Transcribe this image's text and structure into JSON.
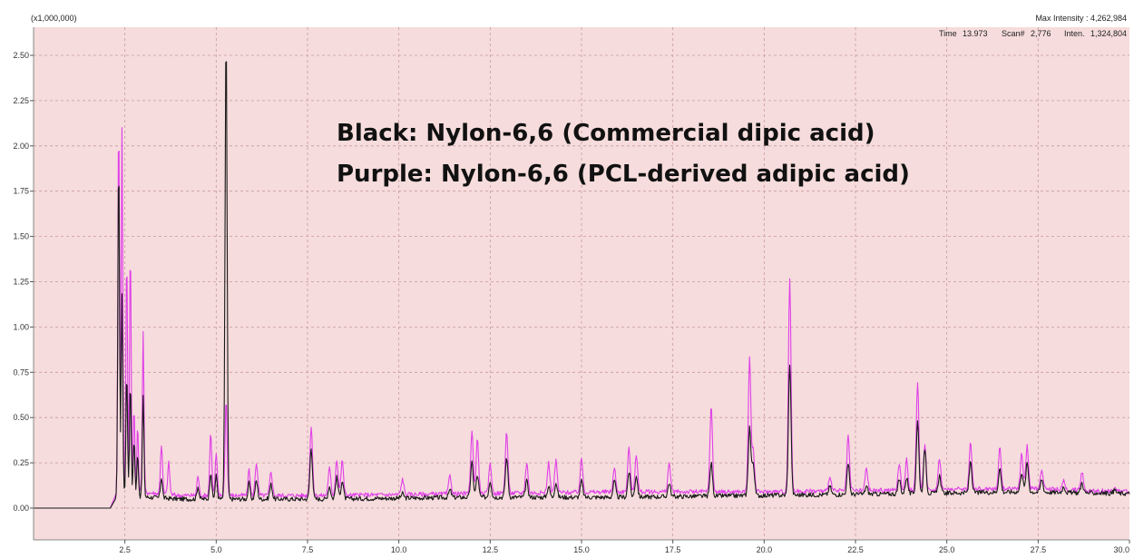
{
  "header": {
    "scale_label": "(x1,000,000)",
    "max_intensity": "Max Intensity : 4,262,984",
    "time_label": "Time",
    "time_value": "13.973",
    "scan_label": "Scan#",
    "scan_value": "2,776",
    "inten_label": "Inten.",
    "inten_value": "1,324,804"
  },
  "legend": {
    "line1": "Black: Nylon-6,6 (Commercial dipic acid)",
    "line2": "Purple: Nylon-6,6 (PCL-derived adipic acid)"
  },
  "colors": {
    "plot_background": "#f6dcdc",
    "grid": "#c89aa0",
    "black_trace": "#1a1a1a",
    "purple_trace": "#e040e8"
  },
  "chart_data": {
    "type": "line",
    "xlim": [
      0.0,
      30.0
    ],
    "ylim": [
      -0.1,
      2.65
    ],
    "grid": true,
    "x_ticks": [
      "2.5",
      "5.0",
      "7.5",
      "10.0",
      "12.5",
      "15.0",
      "17.5",
      "20.0",
      "22.5",
      "25.0",
      "27.5",
      "30.0"
    ],
    "x_tick_values": [
      2.5,
      5.0,
      7.5,
      10.0,
      12.5,
      15.0,
      17.5,
      20.0,
      22.5,
      25.0,
      27.5,
      30.0
    ],
    "y_ticks": [
      "0.00",
      "0.25",
      "0.50",
      "0.75",
      "1.00",
      "1.25",
      "1.50",
      "1.75",
      "2.00",
      "2.25",
      "2.50"
    ],
    "y_tick_values": [
      0.0,
      0.25,
      0.5,
      0.75,
      1.0,
      1.25,
      1.5,
      1.75,
      2.0,
      2.25,
      2.5
    ],
    "series": [
      {
        "color": "#1a1a1a",
        "baseline": [
          [
            0.0,
            0.0
          ],
          [
            2.1,
            0.0
          ],
          [
            2.3,
            0.07
          ],
          [
            4.0,
            0.05
          ],
          [
            8.0,
            0.05
          ],
          [
            12.0,
            0.06
          ],
          [
            16.0,
            0.06
          ],
          [
            20.0,
            0.07
          ],
          [
            24.0,
            0.08
          ],
          [
            27.0,
            0.09
          ],
          [
            30.0,
            0.08
          ]
        ],
        "peaks": [
          [
            2.33,
            1.95
          ],
          [
            2.42,
            1.18
          ],
          [
            2.55,
            0.75
          ],
          [
            2.65,
            0.7
          ],
          [
            2.75,
            0.38
          ],
          [
            2.85,
            0.3
          ],
          [
            3.0,
            0.62
          ],
          [
            3.5,
            0.17
          ],
          [
            4.5,
            0.12
          ],
          [
            4.85,
            0.2
          ],
          [
            5.0,
            0.18
          ],
          [
            5.27,
            2.62
          ],
          [
            5.9,
            0.14
          ],
          [
            6.1,
            0.15
          ],
          [
            6.5,
            0.13
          ],
          [
            7.6,
            0.33
          ],
          [
            8.1,
            0.12
          ],
          [
            8.3,
            0.17
          ],
          [
            8.45,
            0.15
          ],
          [
            10.1,
            0.08
          ],
          [
            11.4,
            0.1
          ],
          [
            12.0,
            0.25
          ],
          [
            12.15,
            0.18
          ],
          [
            12.5,
            0.15
          ],
          [
            12.95,
            0.28
          ],
          [
            13.5,
            0.15
          ],
          [
            14.1,
            0.12
          ],
          [
            14.3,
            0.14
          ],
          [
            15.0,
            0.15
          ],
          [
            15.9,
            0.15
          ],
          [
            16.3,
            0.2
          ],
          [
            16.5,
            0.18
          ],
          [
            17.4,
            0.14
          ],
          [
            18.55,
            0.25
          ],
          [
            19.6,
            0.45
          ],
          [
            19.7,
            0.25
          ],
          [
            20.7,
            0.8
          ],
          [
            21.8,
            0.12
          ],
          [
            22.3,
            0.24
          ],
          [
            22.8,
            0.12
          ],
          [
            23.7,
            0.16
          ],
          [
            23.9,
            0.17
          ],
          [
            24.2,
            0.48
          ],
          [
            24.4,
            0.33
          ],
          [
            24.8,
            0.18
          ],
          [
            25.65,
            0.26
          ],
          [
            26.45,
            0.22
          ],
          [
            27.05,
            0.2
          ],
          [
            27.2,
            0.25
          ],
          [
            27.6,
            0.16
          ],
          [
            28.2,
            0.12
          ],
          [
            28.7,
            0.14
          ],
          [
            29.6,
            0.1
          ]
        ]
      },
      {
        "color": "#e040e8",
        "baseline": [
          [
            0.0,
            0.0
          ],
          [
            2.1,
            0.0
          ],
          [
            2.3,
            0.1
          ],
          [
            4.0,
            0.07
          ],
          [
            8.0,
            0.07
          ],
          [
            12.0,
            0.08
          ],
          [
            16.0,
            0.09
          ],
          [
            20.0,
            0.09
          ],
          [
            24.0,
            0.1
          ],
          [
            27.0,
            0.11
          ],
          [
            30.0,
            0.09
          ]
        ],
        "peaks": [
          [
            2.33,
            2.18
          ],
          [
            2.42,
            2.1
          ],
          [
            2.55,
            1.4
          ],
          [
            2.65,
            1.45
          ],
          [
            2.75,
            0.55
          ],
          [
            2.85,
            0.45
          ],
          [
            3.0,
            0.97
          ],
          [
            3.5,
            0.35
          ],
          [
            3.7,
            0.25
          ],
          [
            4.5,
            0.18
          ],
          [
            4.85,
            0.42
          ],
          [
            5.0,
            0.3
          ],
          [
            5.27,
            0.6
          ],
          [
            5.9,
            0.22
          ],
          [
            6.1,
            0.25
          ],
          [
            6.5,
            0.2
          ],
          [
            7.6,
            0.45
          ],
          [
            8.1,
            0.22
          ],
          [
            8.3,
            0.27
          ],
          [
            8.45,
            0.26
          ],
          [
            10.1,
            0.16
          ],
          [
            11.4,
            0.18
          ],
          [
            12.0,
            0.42
          ],
          [
            12.15,
            0.38
          ],
          [
            12.5,
            0.25
          ],
          [
            12.95,
            0.42
          ],
          [
            13.5,
            0.25
          ],
          [
            14.1,
            0.25
          ],
          [
            14.3,
            0.26
          ],
          [
            15.0,
            0.27
          ],
          [
            15.9,
            0.22
          ],
          [
            16.3,
            0.33
          ],
          [
            16.5,
            0.3
          ],
          [
            17.4,
            0.25
          ],
          [
            18.55,
            0.56
          ],
          [
            19.6,
            0.82
          ],
          [
            19.7,
            0.32
          ],
          [
            20.7,
            1.27
          ],
          [
            21.8,
            0.18
          ],
          [
            22.3,
            0.4
          ],
          [
            22.8,
            0.22
          ],
          [
            23.7,
            0.25
          ],
          [
            23.9,
            0.27
          ],
          [
            24.2,
            0.7
          ],
          [
            24.4,
            0.34
          ],
          [
            24.8,
            0.28
          ],
          [
            25.65,
            0.37
          ],
          [
            26.45,
            0.33
          ],
          [
            27.05,
            0.3
          ],
          [
            27.2,
            0.35
          ],
          [
            27.6,
            0.22
          ],
          [
            28.2,
            0.15
          ],
          [
            28.7,
            0.2
          ],
          [
            29.6,
            0.12
          ]
        ]
      }
    ]
  }
}
